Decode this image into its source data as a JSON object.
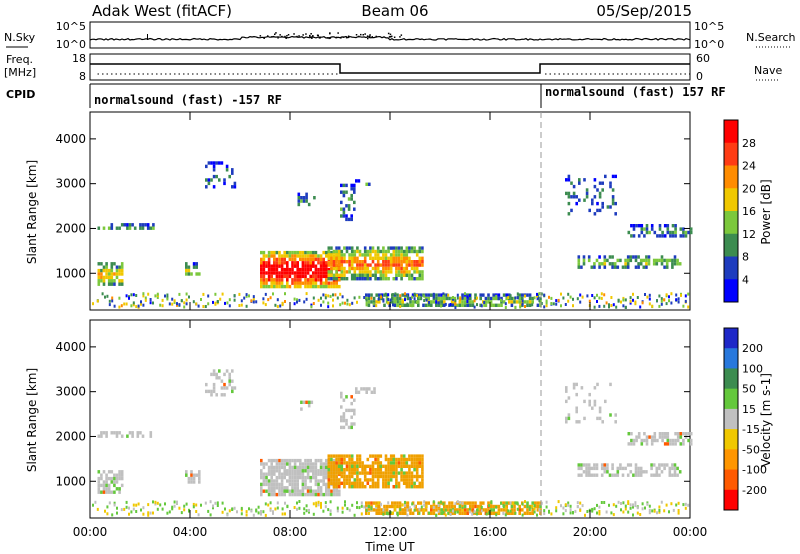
{
  "header": {
    "station": "Adak West (fitACF)",
    "beam": "Beam 06",
    "date": "05/Sep/2015"
  },
  "side_labels": {
    "nsky": "N.Sky",
    "nsearch": "N.Search",
    "freq": "Freq.",
    "freq_unit": "[MHz]",
    "nave": "Nave",
    "cpid": "CPID"
  },
  "ticks": {
    "nsky_top": "10^5",
    "nsky_bottom": "10^0",
    "freq_top": "18",
    "freq_bottom": "8",
    "nave_top": "60",
    "nave_bottom": "0"
  },
  "cpid_labels": {
    "left": "normalsound (fast) -157 RF",
    "right": "normalsound (fast) 157 RF"
  },
  "colors": {
    "background": "#ffffff",
    "axis": "#000000",
    "ground_scatter": "#c0c0c0"
  },
  "chart_data": [
    {
      "type": "heatmap",
      "panel": "power",
      "ylabel": "Slant Range [km]",
      "ylim": [
        180,
        4600
      ],
      "yticks": [
        "1000",
        "2000",
        "3000",
        "4000"
      ],
      "xlim": [
        0,
        24
      ],
      "colorbar": {
        "label": "Power [dB]",
        "ticks": [
          "4",
          "8",
          "12",
          "16",
          "20",
          "24",
          "28"
        ],
        "colors": [
          "#0000ff",
          "#1e3cbe",
          "#3c8c50",
          "#7cc83c",
          "#f0c800",
          "#ff8c00",
          "#ff3c14",
          "#ff0000"
        ]
      }
    },
    {
      "type": "heatmap",
      "panel": "velocity",
      "ylabel": "Slant Range [km]",
      "ylim": [
        180,
        4600
      ],
      "yticks": [
        "1000",
        "2000",
        "3000",
        "4000"
      ],
      "xlim": [
        0,
        24
      ],
      "xticks": [
        "00:00",
        "04:00",
        "08:00",
        "12:00",
        "16:00",
        "20:00",
        "00:00"
      ],
      "xlabel": "Time UT",
      "colorbar": {
        "label": "Velocity [m s-1]",
        "ticks": [
          "200",
          "100",
          "50",
          "15",
          "-15",
          "-50",
          "-100",
          "-200"
        ],
        "colors": [
          "#1e28c8",
          "#2878dc",
          "#3c8c50",
          "#64c83c",
          "#c0c0c0",
          "#f0c800",
          "#ff9600",
          "#ff5a00",
          "#ff0000"
        ]
      }
    }
  ]
}
